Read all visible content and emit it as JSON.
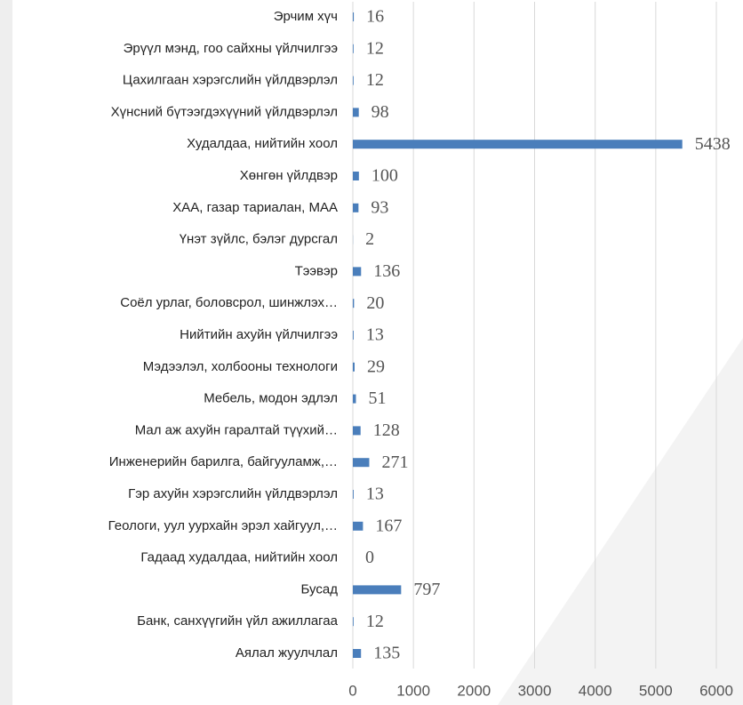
{
  "chart_data": {
    "type": "bar",
    "orientation": "horizontal",
    "categories": [
      "Эрчим хүч",
      "Эрүүл мэнд, гоо сайхны үйлчилгээ",
      "Цахилгаан хэрэгслийн үйлдвэрлэл",
      "Хүнсний бүтээгдэхүүний үйлдвэрлэл",
      "Худалдаа, нийтийн хоол",
      "Хөнгөн үйлдвэр",
      "ХАА, газар тариалан, МАА",
      "Үнэт зүйлс, бэлэг дурсгал",
      "Тээвэр",
      "Соёл урлаг, боловсрол, шинжлэх…",
      "Нийтийн ахуйн үйлчилгээ",
      "Мэдээлэл, холбооны технологи",
      "Мебель, модон эдлэл",
      "Мал аж ахуйн гаралтай түүхий…",
      "Инженерийн барилга, байгууламж,…",
      "Гэр ахуйн хэрэгслийн үйлдвэрлэл",
      "Геологи, уул уурхайн эрэл хайгуул,…",
      "Гадаад худалдаа, нийтийн хоол",
      "Бусад",
      "Банк, санхүүгийн үйл ажиллагаа",
      "Аялал жуулчлал"
    ],
    "values": [
      16,
      12,
      12,
      98,
      5438,
      100,
      93,
      2,
      136,
      20,
      13,
      29,
      51,
      128,
      271,
      13,
      167,
      0,
      797,
      12,
      135
    ],
    "color": "#4a7ebb",
    "xlim": [
      0,
      6000
    ],
    "xticks": [
      0,
      1000,
      2000,
      3000,
      4000,
      5000,
      6000
    ],
    "grid": true
  }
}
